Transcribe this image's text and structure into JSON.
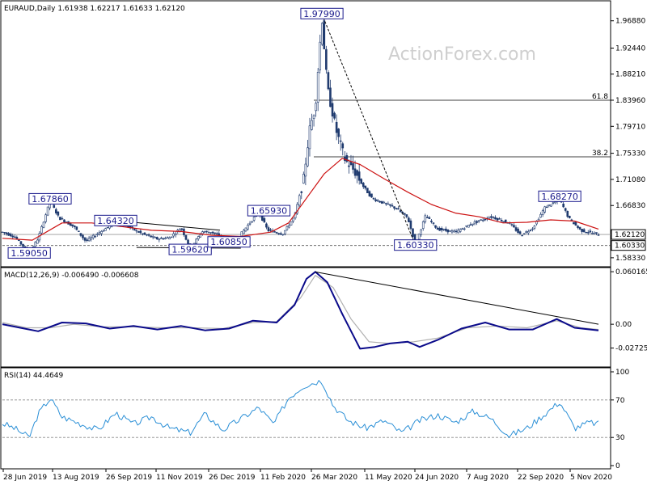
{
  "watermark": "ActionForex.com",
  "colors": {
    "candle": "#1f3a6e",
    "ma": "#cc1111",
    "macd": "#0a0a8a",
    "signal": "#b0b0b0",
    "rsi": "#2a8fd6",
    "label_text": "#1a1a8c",
    "frame": "#000000",
    "dashed": "#555555"
  },
  "chart_data": [
    {
      "type": "candlestick",
      "title": "EURAUD,Daily  1.61938 1.62217 1.61633 1.62120",
      "ylim": [
        1.57,
        2.0
      ],
      "y_ticks": [
        "1.96880",
        "1.92440",
        "1.88210",
        "1.83960",
        "1.79710",
        "1.75330",
        "1.71080",
        "1.66830",
        "1.62120",
        "1.60330",
        "1.58330"
      ],
      "y_tick_values": [
        1.9688,
        1.9244,
        1.8821,
        1.8396,
        1.7971,
        1.7533,
        1.7108,
        1.6683,
        1.6212,
        1.6033,
        1.5833
      ],
      "x_ticks": [
        "28 Jun 2019",
        "13 Aug 2019",
        "26 Sep 2019",
        "11 Nov 2019",
        "26 Dec 2019",
        "11 Feb 2020",
        "26 Mar 2020",
        "11 May 2020",
        "24 Jun 2020",
        "7 Aug 2020",
        "22 Sep 2020",
        "5 Nov 2020"
      ],
      "current_price": "1.62120",
      "current_price_value": 1.6212,
      "support_price": "1.60330",
      "support_price_value": 1.6033,
      "fib_levels": [
        {
          "label": "61.8",
          "value": 1.8396
        },
        {
          "label": "38.2",
          "value": 1.7475
        }
      ],
      "annotations": [
        {
          "text": "1.97990",
          "value": 1.9799,
          "t": 0.536
        },
        {
          "text": "1.67860",
          "value": 1.6786,
          "t": 0.08
        },
        {
          "text": "1.64320",
          "value": 1.6432,
          "t": 0.19
        },
        {
          "text": "1.59050",
          "value": 1.5905,
          "t": 0.045
        },
        {
          "text": "1.59620",
          "value": 1.5962,
          "t": 0.315
        },
        {
          "text": "1.60850",
          "value": 1.6085,
          "t": 0.38
        },
        {
          "text": "1.65930",
          "value": 1.6593,
          "t": 0.447
        },
        {
          "text": "1.60330",
          "value": 1.6033,
          "t": 0.693
        },
        {
          "text": "1.68270",
          "value": 1.6827,
          "t": 0.935
        }
      ],
      "series_path": [
        [
          0.0,
          1.625
        ],
        [
          0.02,
          1.618
        ],
        [
          0.045,
          1.591
        ],
        [
          0.06,
          1.615
        ],
        [
          0.08,
          1.676
        ],
        [
          0.095,
          1.648
        ],
        [
          0.12,
          1.634
        ],
        [
          0.14,
          1.61
        ],
        [
          0.165,
          1.626
        ],
        [
          0.19,
          1.641
        ],
        [
          0.21,
          1.634
        ],
        [
          0.235,
          1.622
        ],
        [
          0.26,
          1.614
        ],
        [
          0.28,
          1.616
        ],
        [
          0.3,
          1.632
        ],
        [
          0.315,
          1.598
        ],
        [
          0.335,
          1.626
        ],
        [
          0.355,
          1.624
        ],
        [
          0.375,
          1.611
        ],
        [
          0.395,
          1.616
        ],
        [
          0.415,
          1.64
        ],
        [
          0.43,
          1.658
        ],
        [
          0.445,
          1.628
        ],
        [
          0.47,
          1.622
        ],
        [
          0.49,
          1.65
        ],
        [
          0.505,
          1.71
        ],
        [
          0.515,
          1.79
        ],
        [
          0.525,
          1.83
        ],
        [
          0.536,
          1.975
        ],
        [
          0.545,
          1.86
        ],
        [
          0.56,
          1.79
        ],
        [
          0.575,
          1.742
        ],
        [
          0.59,
          1.725
        ],
        [
          0.605,
          1.7
        ],
        [
          0.62,
          1.68
        ],
        [
          0.64,
          1.672
        ],
        [
          0.66,
          1.664
        ],
        [
          0.68,
          1.648
        ],
        [
          0.693,
          1.605
        ],
        [
          0.71,
          1.652
        ],
        [
          0.73,
          1.63
        ],
        [
          0.76,
          1.625
        ],
        [
          0.79,
          1.64
        ],
        [
          0.82,
          1.65
        ],
        [
          0.85,
          1.64
        ],
        [
          0.87,
          1.62
        ],
        [
          0.89,
          1.632
        ],
        [
          0.91,
          1.665
        ],
        [
          0.935,
          1.678
        ],
        [
          0.95,
          1.648
        ],
        [
          0.97,
          1.628
        ],
        [
          1.0,
          1.621
        ]
      ],
      "ma_path": [
        [
          0.0,
          1.615
        ],
        [
          0.05,
          1.612
        ],
        [
          0.1,
          1.64
        ],
        [
          0.15,
          1.64
        ],
        [
          0.2,
          1.634
        ],
        [
          0.25,
          1.628
        ],
        [
          0.3,
          1.626
        ],
        [
          0.35,
          1.62
        ],
        [
          0.4,
          1.618
        ],
        [
          0.45,
          1.625
        ],
        [
          0.48,
          1.64
        ],
        [
          0.51,
          1.68
        ],
        [
          0.54,
          1.72
        ],
        [
          0.57,
          1.745
        ],
        [
          0.6,
          1.735
        ],
        [
          0.64,
          1.712
        ],
        [
          0.68,
          1.69
        ],
        [
          0.72,
          1.67
        ],
        [
          0.76,
          1.656
        ],
        [
          0.8,
          1.65
        ],
        [
          0.84,
          1.64
        ],
        [
          0.88,
          1.641
        ],
        [
          0.92,
          1.645
        ],
        [
          0.96,
          1.643
        ],
        [
          1.0,
          1.63
        ]
      ]
    },
    {
      "type": "line",
      "title": "MACD(12,26,9) -0.006490 -0.006608",
      "ylim": [
        -0.048,
        0.064
      ],
      "y_ticks": [
        "0.060165",
        "0.00",
        "-0.02725"
      ],
      "y_tick_values": [
        0.060165,
        0.0,
        -0.02725
      ],
      "macd_path": [
        [
          0.0,
          0.0
        ],
        [
          0.03,
          -0.004
        ],
        [
          0.06,
          -0.008
        ],
        [
          0.1,
          0.002
        ],
        [
          0.14,
          0.001
        ],
        [
          0.18,
          -0.005
        ],
        [
          0.22,
          -0.002
        ],
        [
          0.26,
          -0.006
        ],
        [
          0.3,
          -0.002
        ],
        [
          0.34,
          -0.007
        ],
        [
          0.38,
          -0.005
        ],
        [
          0.42,
          0.004
        ],
        [
          0.46,
          0.002
        ],
        [
          0.49,
          0.022
        ],
        [
          0.51,
          0.052
        ],
        [
          0.525,
          0.06
        ],
        [
          0.545,
          0.048
        ],
        [
          0.57,
          0.012
        ],
        [
          0.6,
          -0.028
        ],
        [
          0.625,
          -0.026
        ],
        [
          0.65,
          -0.022
        ],
        [
          0.68,
          -0.02
        ],
        [
          0.7,
          -0.026
        ],
        [
          0.73,
          -0.018
        ],
        [
          0.77,
          -0.005
        ],
        [
          0.81,
          0.002
        ],
        [
          0.85,
          -0.006
        ],
        [
          0.89,
          -0.006
        ],
        [
          0.93,
          0.006
        ],
        [
          0.96,
          -0.004
        ],
        [
          1.0,
          -0.007
        ]
      ],
      "signal_path": [
        [
          0.0,
          0.002
        ],
        [
          0.04,
          -0.004
        ],
        [
          0.08,
          -0.004
        ],
        [
          0.12,
          0.0
        ],
        [
          0.17,
          -0.003
        ],
        [
          0.22,
          -0.003
        ],
        [
          0.27,
          -0.004
        ],
        [
          0.32,
          -0.004
        ],
        [
          0.37,
          -0.005
        ],
        [
          0.42,
          0.002
        ],
        [
          0.46,
          0.003
        ],
        [
          0.5,
          0.03
        ],
        [
          0.525,
          0.056
        ],
        [
          0.555,
          0.042
        ],
        [
          0.585,
          0.006
        ],
        [
          0.615,
          -0.02
        ],
        [
          0.65,
          -0.022
        ],
        [
          0.69,
          -0.02
        ],
        [
          0.73,
          -0.016
        ],
        [
          0.78,
          -0.004
        ],
        [
          0.83,
          -0.002
        ],
        [
          0.88,
          -0.004
        ],
        [
          0.93,
          0.004
        ],
        [
          0.97,
          -0.004
        ],
        [
          1.0,
          -0.006
        ]
      ],
      "trendline": [
        [
          0.525,
          0.06
        ],
        [
          1.0,
          0.0
        ]
      ]
    },
    {
      "type": "line",
      "title": "RSI(14) 44.4649",
      "ylim": [
        0,
        100
      ],
      "y_ticks": [
        "100",
        "70",
        "30",
        "0"
      ],
      "y_tick_values": [
        100,
        70,
        30,
        0
      ],
      "rsi_path": [
        [
          0.0,
          45
        ],
        [
          0.02,
          40
        ],
        [
          0.045,
          30
        ],
        [
          0.06,
          55
        ],
        [
          0.08,
          72
        ],
        [
          0.1,
          52
        ],
        [
          0.13,
          45
        ],
        [
          0.16,
          38
        ],
        [
          0.19,
          56
        ],
        [
          0.22,
          44
        ],
        [
          0.25,
          52
        ],
        [
          0.28,
          40
        ],
        [
          0.315,
          35
        ],
        [
          0.34,
          55
        ],
        [
          0.37,
          38
        ],
        [
          0.4,
          50
        ],
        [
          0.43,
          62
        ],
        [
          0.455,
          44
        ],
        [
          0.48,
          72
        ],
        [
          0.505,
          85
        ],
        [
          0.536,
          91
        ],
        [
          0.555,
          64
        ],
        [
          0.58,
          48
        ],
        [
          0.61,
          40
        ],
        [
          0.64,
          48
        ],
        [
          0.67,
          35
        ],
        [
          0.7,
          48
        ],
        [
          0.73,
          54
        ],
        [
          0.76,
          46
        ],
        [
          0.79,
          58
        ],
        [
          0.82,
          50
        ],
        [
          0.85,
          32
        ],
        [
          0.88,
          40
        ],
        [
          0.91,
          55
        ],
        [
          0.935,
          68
        ],
        [
          0.96,
          40
        ],
        [
          0.985,
          46
        ],
        [
          1.0,
          44.46
        ]
      ]
    }
  ]
}
